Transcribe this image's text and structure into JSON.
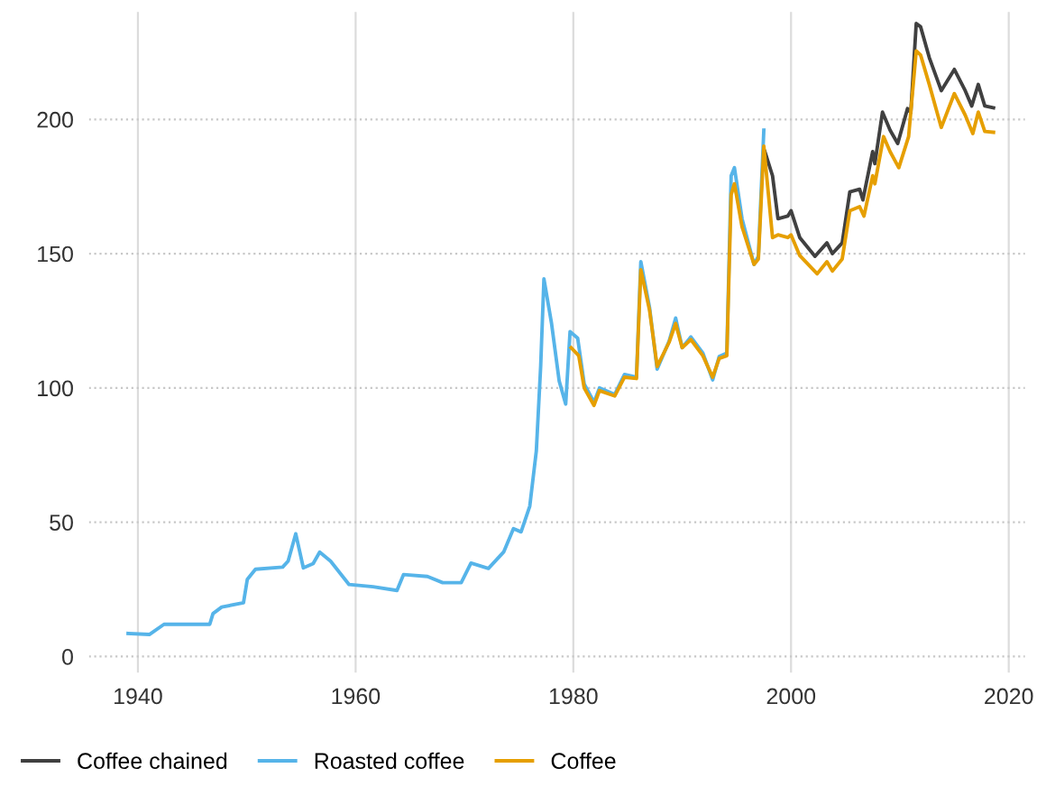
{
  "chart_data": {
    "type": "line",
    "xlim": [
      1935.5,
      2021.5
    ],
    "ylim": [
      -6,
      240
    ],
    "xticks": [
      1940,
      1960,
      1980,
      2000,
      2020
    ],
    "yticks": [
      0,
      50,
      100,
      150,
      200
    ],
    "grid": true,
    "legend": "bottom left",
    "line_style": "solid",
    "marker": "none",
    "series": [
      {
        "name": "Coffee chained",
        "color": "#404040",
        "x": [
          1997.6,
          1998.3,
          1998.8,
          1999.7,
          2000,
          2000.8,
          2002.2,
          2003.3,
          2003.8,
          2004.7,
          2005.4,
          2006.3,
          2006.6,
          2007.5,
          2007.7,
          2008.4,
          2009.1,
          2009.8,
          2010.7,
          2011.0,
          2011.5,
          2011.9,
          2012.7,
          2013.8,
          2015,
          2016,
          2016.6,
          2017.2,
          2017.8,
          2018.6
        ],
        "values": [
          188,
          179,
          163,
          164,
          166,
          156,
          149,
          154,
          150,
          154,
          173,
          174,
          170,
          188,
          183.5,
          202.7,
          196,
          191,
          204,
          202.5,
          235.7,
          234.5,
          223,
          210.7,
          218.6,
          210.7,
          205,
          213,
          205,
          204.3
        ]
      },
      {
        "name": "Roasted coffee",
        "color": "#56b4e9",
        "x": [
          1939.1,
          1941.05,
          1942.4,
          1946.6,
          1946.9,
          1947.7,
          1949.7,
          1950.05,
          1950.8,
          1953.3,
          1953.8,
          1954.5,
          1955.2,
          1956.1,
          1956.7,
          1957.7,
          1959.4,
          1961.6,
          1963.8,
          1964.4,
          1966.6,
          1968,
          1969.7,
          1970.6,
          1972.2,
          1973.6,
          1974.5,
          1975.2,
          1976,
          1976.6,
          1977,
          1977.3,
          1978,
          1978.7,
          1979.3,
          1979.7,
          1980.4,
          1981,
          1981.9,
          1982.4,
          1983.8,
          1984.7,
          1985.8,
          1986.2,
          1987,
          1987.7,
          1988.8,
          1989.4,
          1990,
          1990.8,
          1991.9,
          1992.8,
          1993.4,
          1994.1,
          1994.5,
          1994.8,
          1995.5,
          1996.6,
          1997,
          1997.5
        ],
        "values": [
          8.6,
          8.2,
          12,
          12,
          16,
          18.4,
          20,
          28.7,
          32.5,
          33.3,
          35.5,
          45.7,
          33,
          34.6,
          38.9,
          35.5,
          26.8,
          26,
          24.6,
          30.5,
          29.8,
          27.5,
          27.5,
          34.8,
          32.8,
          38.9,
          47.6,
          46.4,
          56,
          76.5,
          108,
          140.6,
          124,
          102.6,
          94,
          121,
          118.5,
          101.5,
          94.7,
          100,
          97.6,
          105,
          104,
          147,
          130,
          107,
          117.4,
          126,
          115,
          119,
          113,
          103,
          111.7,
          113,
          179,
          182,
          163,
          146,
          149,
          196
        ]
      },
      {
        "name": "Coffee",
        "color": "#e69f00",
        "x": [
          1979.8,
          1980.5,
          1981,
          1981.9,
          1982.4,
          1983.8,
          1984.7,
          1985.8,
          1986.2,
          1987,
          1987.7,
          1988.8,
          1989.4,
          1990,
          1990.8,
          1991.9,
          1992.8,
          1993.4,
          1994.1,
          1994.5,
          1994.8,
          1995.5,
          1996.6,
          1997,
          1997.5,
          1998.3,
          1998.8,
          1999.7,
          2000,
          2000.8,
          2002.4,
          2003.3,
          2003.8,
          2004.7,
          2005.4,
          2006.3,
          2006.7,
          2007.5,
          2007.7,
          2008.5,
          2009.1,
          2009.9,
          2010.8,
          2011.5,
          2011.9,
          2012.7,
          2013.8,
          2015,
          2016,
          2016.7,
          2017.2,
          2017.8,
          2018.6
        ],
        "values": [
          115,
          112,
          100,
          93.5,
          99,
          97,
          104,
          103.5,
          144,
          129,
          108,
          117,
          124,
          115,
          118,
          112,
          104,
          111,
          112,
          172,
          176,
          160,
          146,
          148,
          190,
          156,
          157,
          156,
          157,
          149.3,
          142.5,
          147,
          143.5,
          148,
          166,
          167.5,
          164,
          179,
          176,
          193.6,
          188,
          182,
          193.6,
          225.5,
          224,
          213,
          197,
          209.6,
          201.6,
          194.7,
          202.7,
          195.5,
          195.2
        ]
      }
    ]
  }
}
